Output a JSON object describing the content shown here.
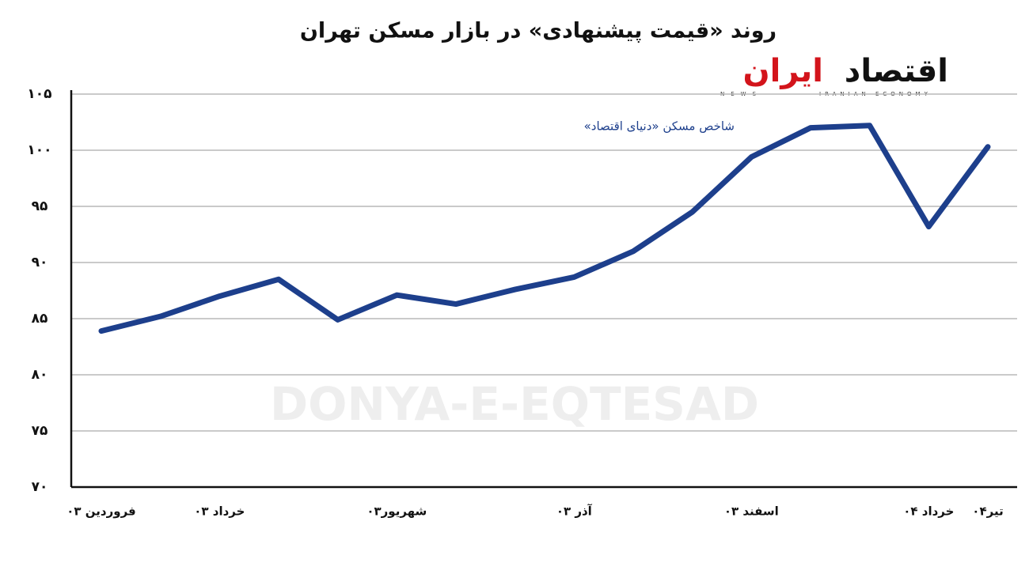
{
  "chart_data": {
    "type": "line",
    "title": "روند «قیمت پیشنهادی» در بازار مسکن تهران",
    "categories": [
      "فروردین ۰۳",
      null,
      "خرداد ۰۳",
      null,
      null,
      "شهریور۰۳",
      null,
      null,
      "آذر ۰۳",
      null,
      null,
      "اسفند ۰۳",
      null,
      null,
      "خرداد ۰۴",
      "تیر۰۴"
    ],
    "series": [
      {
        "name": "شاخص مسکن «دنیای اقتصاد»",
        "color": "#1d3f8c",
        "values": [
          83.9,
          85.2,
          87.0,
          88.5,
          84.9,
          87.1,
          86.3,
          87.6,
          88.7,
          91.0,
          94.5,
          99.4,
          102.0,
          102.2,
          93.2,
          100.3
        ]
      }
    ],
    "ylim": [
      70,
      105
    ],
    "yticks": [
      {
        "value": 70,
        "label": "۷۰"
      },
      {
        "value": 75,
        "label": "۷۵"
      },
      {
        "value": 80,
        "label": "۸۰"
      },
      {
        "value": 85,
        "label": "۸۵"
      },
      {
        "value": 90,
        "label": "۹۰"
      },
      {
        "value": 95,
        "label": "۹۵"
      },
      {
        "value": 100,
        "label": "۱۰۰"
      },
      {
        "value": 105,
        "label": "۱۰۵"
      }
    ],
    "grid": true,
    "watermark": "DONYA-E-EQTESAD",
    "logo": {
      "main": "اقتصاد",
      "accent": "ایران",
      "left": "NEWS",
      "right": "IRANIAN ECONOMY"
    }
  }
}
